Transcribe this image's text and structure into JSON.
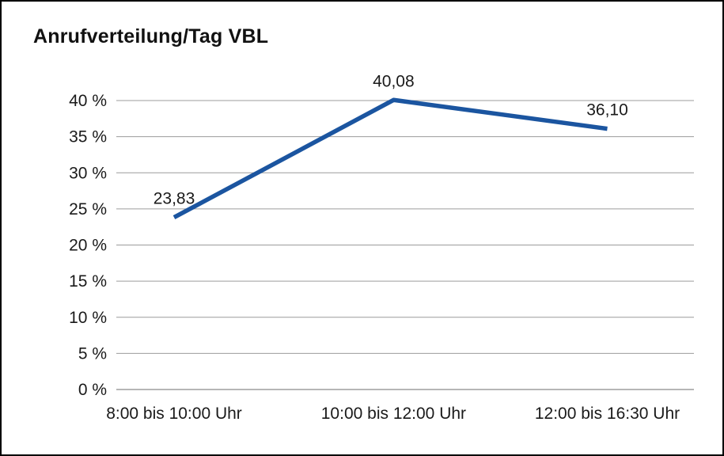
{
  "chart_data": {
    "type": "line",
    "title": "Anrufverteilung/Tag VBL",
    "categories": [
      "8:00 bis 10:00 Uhr",
      "10:00 bis 12:00 Uhr",
      "12:00 bis 16:30 Uhr"
    ],
    "values": [
      23.83,
      40.08,
      36.1
    ],
    "data_labels": [
      "23,83",
      "40,08",
      "36,10"
    ],
    "ylim": [
      0,
      40
    ],
    "ytick_step": 5,
    "ytick_labels": [
      "0 %",
      "5 %",
      "10 %",
      "15 %",
      "20 %",
      "25 %",
      "30 %",
      "35 %",
      "40 %"
    ],
    "grid": true,
    "legend": "none",
    "line_color": "#1b55a0",
    "grid_color": "#9c9c9c",
    "axis_color": "#6e6e6e",
    "text_color": "#1a1a1a"
  }
}
